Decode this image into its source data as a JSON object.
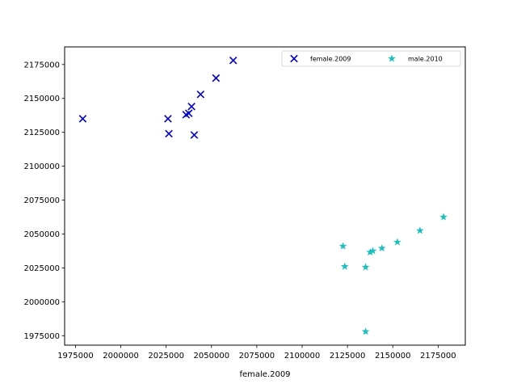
{
  "chart_data": {
    "type": "scatter",
    "title": "",
    "xlabel": "female.2009",
    "ylabel": "",
    "xlim": [
      1969000,
      2190000
    ],
    "ylim": [
      1968000,
      2188000
    ],
    "xticks": [
      1975000,
      2000000,
      2025000,
      2050000,
      2075000,
      2100000,
      2125000,
      2150000,
      2175000
    ],
    "yticks": [
      1975000,
      2000000,
      2025000,
      2050000,
      2075000,
      2100000,
      2125000,
      2150000,
      2175000
    ],
    "xtick_labels": [
      "1975000",
      "2000000",
      "2025000",
      "2050000",
      "2075000",
      "2100000",
      "2125000",
      "2150000",
      "2175000"
    ],
    "ytick_labels": [
      "1975000",
      "2000000",
      "2025000",
      "2050000",
      "2075000",
      "2100000",
      "2125000",
      "2150000",
      "2175000"
    ],
    "legend_position": "upper right",
    "legend_columns": 2,
    "series": [
      {
        "name": "female.2009",
        "marker": "x",
        "color": "#0000cc",
        "x": [
          1979000,
          2026000,
          2026500,
          2036000,
          2037500,
          2039000,
          2040500,
          2044000,
          2052500,
          2062000
        ],
        "y": [
          2135000,
          2135000,
          2124000,
          2138000,
          2139000,
          2144000,
          2123000,
          2153000,
          2165000,
          2178000
        ]
      },
      {
        "name": "male.2010",
        "marker": "star",
        "color": "#1ebfbf",
        "x": [
          2122500,
          2123500,
          2135000,
          2135000,
          2137500,
          2139000,
          2144000,
          2152500,
          2165000,
          2178000
        ],
        "y": [
          2041000,
          2026000,
          2025500,
          1978000,
          2036500,
          2037500,
          2039500,
          2044000,
          2052500,
          2062500
        ]
      }
    ]
  }
}
